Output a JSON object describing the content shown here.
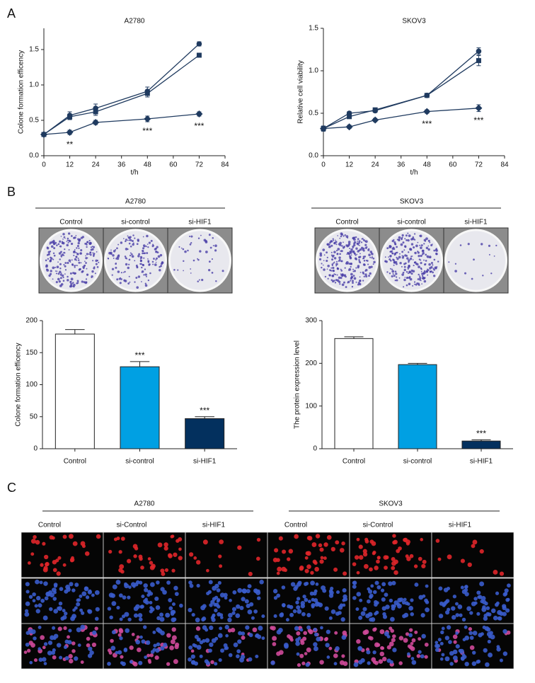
{
  "panel_labels": [
    "A",
    "B",
    "C"
  ],
  "chart_data": [
    {
      "type": "line",
      "title": "A2780",
      "x_label": "t/h",
      "y_label": "Colone formation efficency",
      "x": [
        0,
        12,
        24,
        48,
        72
      ],
      "xlim": [
        0,
        84
      ],
      "xticks": [
        0,
        12,
        24,
        36,
        48,
        60,
        72,
        84
      ],
      "ylim": [
        0,
        1.8
      ],
      "yticks": [
        {
          "value": 0,
          "label": "0.0"
        },
        0.5,
        {
          "value": 1,
          "label": "1.0"
        },
        1.5
      ],
      "series": [
        {
          "color": "#1f3a5f",
          "marker": "circle",
          "values": [
            0.3,
            0.57,
            0.67,
            0.91,
            1.58
          ],
          "errors": [
            0.02,
            0.05,
            0.06,
            0.06,
            0.03
          ]
        },
        {
          "color": "#1f3a5f",
          "marker": "square",
          "values": [
            0.3,
            0.55,
            0.62,
            0.88,
            1.42
          ],
          "errors": [
            0.02,
            0.04,
            0.05,
            0.05,
            0.02
          ]
        },
        {
          "color": "#1f3a5f",
          "marker": "diamond",
          "values": [
            0.3,
            0.33,
            0.47,
            0.52,
            0.59
          ],
          "errors": [
            0.02,
            0.03,
            0.03,
            0.04,
            0.03
          ]
        }
      ],
      "annotations": [
        {
          "x": 12,
          "text": "**"
        },
        {
          "x": 48,
          "text": "***"
        },
        {
          "x": 72,
          "text": "***"
        }
      ]
    },
    {
      "type": "line",
      "title": "SKOV3",
      "x_label": "t/h",
      "y_label": "Relative cell viability",
      "x": [
        0,
        12,
        24,
        48,
        72
      ],
      "xlim": [
        0,
        84
      ],
      "xticks": [
        0,
        12,
        24,
        36,
        48,
        60,
        72,
        84
      ],
      "ylim": [
        0,
        1.5
      ],
      "yticks": [
        {
          "value": 0,
          "label": "0.0"
        },
        0.5,
        {
          "value": 1,
          "label": "1.0"
        },
        1.5
      ],
      "series": [
        {
          "color": "#1f3a5f",
          "marker": "circle",
          "values": [
            0.32,
            0.5,
            0.53,
            0.71,
            1.23
          ],
          "errors": [
            0.03,
            0.02,
            0.02,
            0.02,
            0.04
          ]
        },
        {
          "color": "#1f3a5f",
          "marker": "square",
          "values": [
            0.32,
            0.46,
            0.54,
            0.71,
            1.12
          ],
          "errors": [
            0.03,
            0.02,
            0.02,
            0.02,
            0.06
          ]
        },
        {
          "color": "#1f3a5f",
          "marker": "diamond",
          "values": [
            0.32,
            0.34,
            0.42,
            0.52,
            0.56
          ],
          "errors": [
            0.03,
            0.02,
            0.02,
            0.02,
            0.04
          ]
        }
      ],
      "annotations": [
        {
          "x": 48,
          "text": "***"
        },
        {
          "x": 72,
          "text": "***"
        }
      ]
    },
    {
      "type": "bar",
      "title": "A2780",
      "y_label": "Colone formation efficency",
      "categories": [
        "Control",
        "si-control",
        "si-HIF1"
      ],
      "values": [
        179,
        128,
        47
      ],
      "errors": [
        7,
        8,
        3
      ],
      "colors": [
        "#ffffff",
        "#00a0e3",
        "#03305e"
      ],
      "significance": [
        null,
        "***",
        "***"
      ],
      "ylim": [
        0,
        200
      ],
      "yticks": [
        0,
        50,
        100,
        150,
        200
      ]
    },
    {
      "type": "bar",
      "title": "SKOV3",
      "y_label": "The protein expression level",
      "categories": [
        "Control",
        "si-control",
        "si-HIF1"
      ],
      "values": [
        258,
        197,
        18
      ],
      "errors": [
        4,
        3,
        3
      ],
      "colors": [
        "#ffffff",
        "#00a0e3",
        "#03305e"
      ],
      "significance": [
        null,
        null,
        "***"
      ],
      "ylim": [
        0,
        300
      ],
      "yticks": [
        0,
        100,
        200,
        300
      ]
    }
  ],
  "plates": {
    "groups": [
      {
        "title": "A2780",
        "columns": [
          "Control",
          "si-control",
          "si-HIF1"
        ]
      },
      {
        "title": "SKOV3",
        "columns": [
          "Control",
          "si-control",
          "si-HIF1"
        ]
      }
    ]
  },
  "microscopy": {
    "groups": [
      {
        "title": "A2780",
        "columns": [
          "Control",
          "si-Control",
          "si-HIF1"
        ]
      },
      {
        "title": "SKOV3",
        "columns": [
          "Control",
          "si-Control",
          "si-HIF1"
        ]
      }
    ]
  }
}
